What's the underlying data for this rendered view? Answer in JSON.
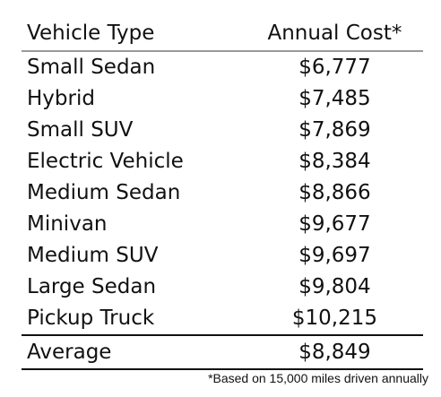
{
  "table": {
    "headers": {
      "vehicle_type": "Vehicle Type",
      "annual_cost": "Annual Cost*"
    },
    "rows": [
      {
        "vehicle_type": "Small Sedan",
        "annual_cost": "$6,777"
      },
      {
        "vehicle_type": "Hybrid",
        "annual_cost": "$7,485"
      },
      {
        "vehicle_type": "Small SUV",
        "annual_cost": "$7,869"
      },
      {
        "vehicle_type": "Electric Vehicle",
        "annual_cost": "$8,384"
      },
      {
        "vehicle_type": "Medium Sedan",
        "annual_cost": "$8,866"
      },
      {
        "vehicle_type": "Minivan",
        "annual_cost": "$9,677"
      },
      {
        "vehicle_type": "Medium SUV",
        "annual_cost": "$9,697"
      },
      {
        "vehicle_type": "Large Sedan",
        "annual_cost": "$9,804"
      },
      {
        "vehicle_type": "Pickup Truck",
        "annual_cost": "$10,215"
      }
    ],
    "total": {
      "label": "Average",
      "annual_cost": "$8,849"
    }
  },
  "footnote": "*Based on 15,000 miles driven annually"
}
